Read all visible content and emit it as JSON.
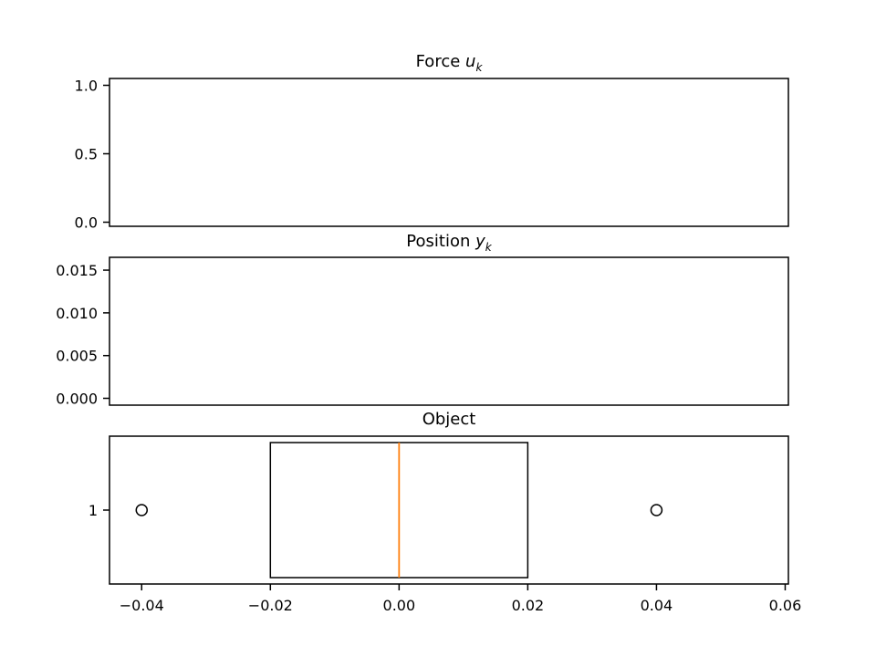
{
  "chart_data": [
    {
      "type": "line",
      "title_prefix": "Force ",
      "title_var": "u",
      "title_sub": "k",
      "series": [],
      "ylim": [
        -0.03,
        1.05
      ],
      "yticks": [
        0.0,
        0.5,
        1.0
      ],
      "ytick_labels": [
        "0.0",
        "0.5",
        "1.0"
      ],
      "grid": false
    },
    {
      "type": "line",
      "title_prefix": "Position ",
      "title_var": "y",
      "title_sub": "k",
      "series": [],
      "ylim": [
        -0.0008,
        0.0165
      ],
      "yticks": [
        0.0,
        0.005,
        0.01,
        0.015
      ],
      "ytick_labels": [
        "0.000",
        "0.005",
        "0.010",
        "0.015"
      ],
      "grid": false
    },
    {
      "type": "boxplot",
      "title": "Object",
      "orientation": "horizontal",
      "xlim": [
        -0.045,
        0.0605
      ],
      "xticks": [
        -0.04,
        -0.02,
        0.0,
        0.02,
        0.04,
        0.06
      ],
      "xtick_labels": [
        "−0.04",
        "−0.02",
        "0.00",
        "0.02",
        "0.04",
        "0.06"
      ],
      "ytick_labels": [
        "1"
      ],
      "box": {
        "q1": -0.02,
        "median": 0.0,
        "q3": 0.02,
        "whisker_low": -0.02,
        "whisker_high": 0.02
      },
      "fliers": [
        -0.04,
        0.04
      ],
      "colors": {
        "box": "#000000",
        "median": "#ff7f0e"
      },
      "grid": false
    }
  ]
}
